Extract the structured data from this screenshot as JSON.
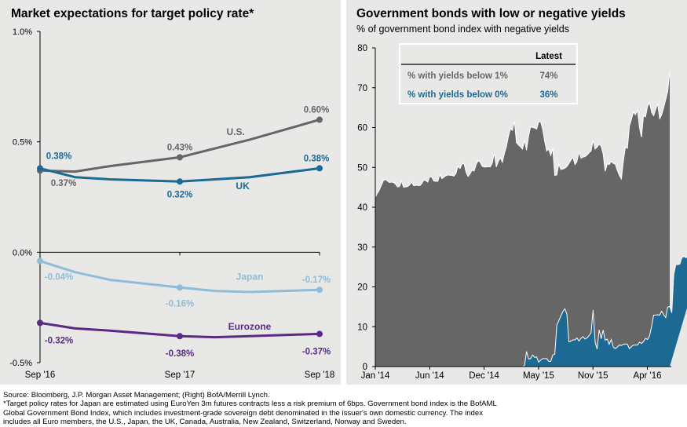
{
  "left": {
    "title": "Market expectations for target policy rate*"
  },
  "right": {
    "title": "Government bonds with low or negative yields",
    "subtitle": "% of government bond index with negative yields",
    "legend_table": {
      "header": "Latest",
      "rows": [
        {
          "label": "% with yields below 1%",
          "value": "74%",
          "color": "#666666"
        },
        {
          "label": "% with yields below 0%",
          "value": "36%",
          "color": "#1c6a94"
        }
      ]
    }
  },
  "footnote": {
    "lines": [
      "Source: Bloomberg, J.P. Morgan Asset Management; (Right) BofA/Merrill Lynch.",
      "*Target policy rates for Japan are estimated using EuroYen 3m futures contracts less a risk premium of 6bps. Government bond index is the BofAML",
      "Global Government Bond Index, which includes investment-grade sovereign debt denominated in the issuer's own domestic currency. The index",
      "includes all Euro members, the U.S., Japan, the UK, Canada, Australia, New Zealand, Switzerland, Norway and Sweden."
    ]
  },
  "chart_data": [
    {
      "type": "line",
      "title": "Market expectations for target policy rate*",
      "xlabel": "",
      "ylabel": "",
      "categories": [
        "Sep '16",
        "Sep '17",
        "Sep '18"
      ],
      "ylim": [
        -0.5,
        1.0
      ],
      "yticks": [
        "1.0%",
        "0.5%",
        "0.0%",
        "-0.5%"
      ],
      "ytick_values": [
        1.0,
        0.5,
        0.0,
        -0.5
      ],
      "grid": false,
      "series": [
        {
          "name": "U.S.",
          "color": "#666666",
          "values": [
            0.37,
            0.43,
            0.6
          ],
          "labels": [
            "0.37%",
            "0.43%",
            "0.60%"
          ],
          "path": [
            [
              0,
              0.37
            ],
            [
              0.25,
              0.365
            ],
            [
              0.5,
              0.39
            ],
            [
              1,
              0.43
            ],
            [
              1.5,
              0.51
            ],
            [
              2,
              0.6
            ]
          ]
        },
        {
          "name": "UK",
          "color": "#1c6a94",
          "values": [
            0.38,
            0.32,
            0.38
          ],
          "labels": [
            "0.38%",
            "0.32%",
            "0.38%"
          ],
          "path": [
            [
              0,
              0.38
            ],
            [
              0.25,
              0.34
            ],
            [
              0.5,
              0.33
            ],
            [
              1,
              0.32
            ],
            [
              1.5,
              0.34
            ],
            [
              2,
              0.38
            ]
          ]
        },
        {
          "name": "Japan",
          "color": "#8fbcd8",
          "values": [
            -0.04,
            -0.16,
            -0.17
          ],
          "labels": [
            "-0.04%",
            "-0.16%",
            "-0.17%"
          ],
          "path": [
            [
              0,
              -0.04
            ],
            [
              0.25,
              -0.09
            ],
            [
              0.5,
              -0.125
            ],
            [
              1,
              -0.16
            ],
            [
              1.25,
              -0.175
            ],
            [
              1.5,
              -0.18
            ],
            [
              2,
              -0.17
            ]
          ]
        },
        {
          "name": "Eurozone",
          "color": "#5b2a86",
          "values": [
            -0.32,
            -0.38,
            -0.37
          ],
          "labels": [
            "-0.32%",
            "-0.38%",
            "-0.37%"
          ],
          "path": [
            [
              0,
              -0.32
            ],
            [
              0.25,
              -0.345
            ],
            [
              0.5,
              -0.355
            ],
            [
              1,
              -0.38
            ],
            [
              1.25,
              -0.385
            ],
            [
              1.5,
              -0.38
            ],
            [
              2,
              -0.37
            ]
          ]
        }
      ]
    },
    {
      "type": "area",
      "title": "Government bonds with low or negative yields",
      "subtitle": "% of government bond index with negative yields",
      "xlabel": "",
      "ylabel": "",
      "x_ticks": [
        "Jan '14",
        "Jun '14",
        "Dec '14",
        "May '15",
        "Nov '15",
        "Apr '16"
      ],
      "x_range": [
        "Jan '14",
        "Jul '16"
      ],
      "ylim": [
        0,
        80
      ],
      "yticks": [
        0,
        10,
        20,
        30,
        40,
        50,
        60,
        70,
        80
      ],
      "grid": false,
      "legend": "top-left table",
      "series": [
        {
          "name": "% with yields below 1%",
          "color": "#666666",
          "latest": 74,
          "values": [
            42.5,
            43.5,
            44.3,
            45.5,
            46.7,
            47,
            46.6,
            46.2,
            46.3,
            46.2,
            45.8,
            45.1,
            45.2,
            46.5,
            45.0,
            45.1,
            45.2,
            45.6,
            46.3,
            45.4,
            45.5,
            45.5,
            45.4,
            45.9,
            46.8,
            46.7,
            46.3,
            47.7,
            47.5,
            46.6,
            46.5,
            46.5,
            48.2,
            47.2,
            47.5,
            47.9,
            48.1,
            48.0,
            48.0,
            47.8,
            48.5,
            50.3,
            49.7,
            50.8,
            51.0,
            48.8,
            47.7,
            48.4,
            49.3,
            49.1,
            50.7,
            51.7,
            51.3,
            50.3,
            50.1,
            50.1,
            50.2,
            50.1,
            51.1,
            53.7,
            50.1,
            51.5,
            52.4,
            51.3,
            53.5,
            55.2,
            57.8,
            59.7,
            59.3,
            61.6,
            56.2,
            55.6,
            55.2,
            54.6,
            56.8,
            54.3,
            57.8,
            60.2,
            60.0,
            59.9,
            59.6,
            61.4,
            61.5,
            59.5,
            56.5,
            54.1,
            54.6,
            53.0,
            54.8,
            48.0,
            48.1,
            50.8,
            49.5,
            49.6,
            49.8,
            50.2,
            51.0,
            51.8,
            52.6,
            50.7,
            51.4,
            53.9,
            52.3,
            52.6,
            52.7,
            53.1,
            53.7,
            54.1,
            56.8,
            54.6,
            55.1,
            55.8,
            55.3,
            53.4,
            49.0,
            50.9,
            50.7,
            51.5,
            51.0,
            50.8,
            49.3,
            48.0,
            47.1,
            51.5,
            55.1,
            54.8,
            60.3,
            62.0,
            64.0,
            63.2,
            64.4,
            60.0,
            57.6,
            63.0,
            62.7,
            65.3,
            66.3,
            63.8,
            63.0,
            64.5,
            66.0,
            62.2,
            63.2,
            65.0,
            67.0,
            69.0,
            74.0
          ]
        },
        {
          "name": "% with yields below 0%",
          "color": "#1c6a94",
          "latest": 36,
          "values": [
            0,
            0,
            0,
            0,
            0,
            0,
            0,
            0,
            0,
            0,
            0,
            0,
            0,
            0,
            0,
            0,
            0,
            0,
            0,
            0,
            0,
            0,
            0,
            0,
            0,
            0,
            0,
            0,
            0,
            0,
            0,
            0,
            0,
            0,
            0,
            0,
            0,
            0,
            0,
            0,
            0,
            0,
            0,
            0,
            0,
            0,
            0,
            0,
            0,
            0,
            0,
            0,
            0,
            0,
            0,
            0,
            0,
            0,
            0,
            0,
            0,
            0,
            0,
            0,
            0,
            0,
            0,
            0,
            0,
            0,
            0,
            0,
            0,
            0,
            0.3,
            3.8,
            1.9,
            2.0,
            2.9,
            2.3,
            2.4,
            1.1,
            1.6,
            2.0,
            2.0,
            2.0,
            1.3,
            1.3,
            2.9,
            3.1,
            10.4,
            11.5,
            12.7,
            13.8,
            14.5,
            13.2,
            6.2,
            6.4,
            6.7,
            6.7,
            7.2,
            6.4,
            7.1,
            7.5,
            6.9,
            7.2,
            7.8,
            8.5,
            14.2,
            6.1,
            4.4,
            9.2,
            7.0,
            9.2,
            6.6,
            6.9,
            5.6,
            6.8,
            4.9,
            4.5,
            4.9,
            5.4,
            5.3,
            5.6,
            5.7,
            5.6,
            4.5,
            5.0,
            5.4,
            5.4,
            5.4,
            6.1,
            5.8,
            6.3,
            7.1,
            6.8,
            7.7,
            10.1,
            12.9,
            12.9,
            13.0,
            12.9,
            13.9,
            13.0,
            12.3,
            14.9,
            15.1,
            13.5,
            23.1,
            25.6,
            25.6,
            25.7,
            27.3,
            27.7,
            27.3,
            27.8,
            28.1,
            28.8,
            28.3,
            29.8,
            29.6,
            29.2,
            30.3,
            31.4,
            31.8,
            30.8,
            33.3,
            36.0
          ]
        }
      ]
    }
  ]
}
